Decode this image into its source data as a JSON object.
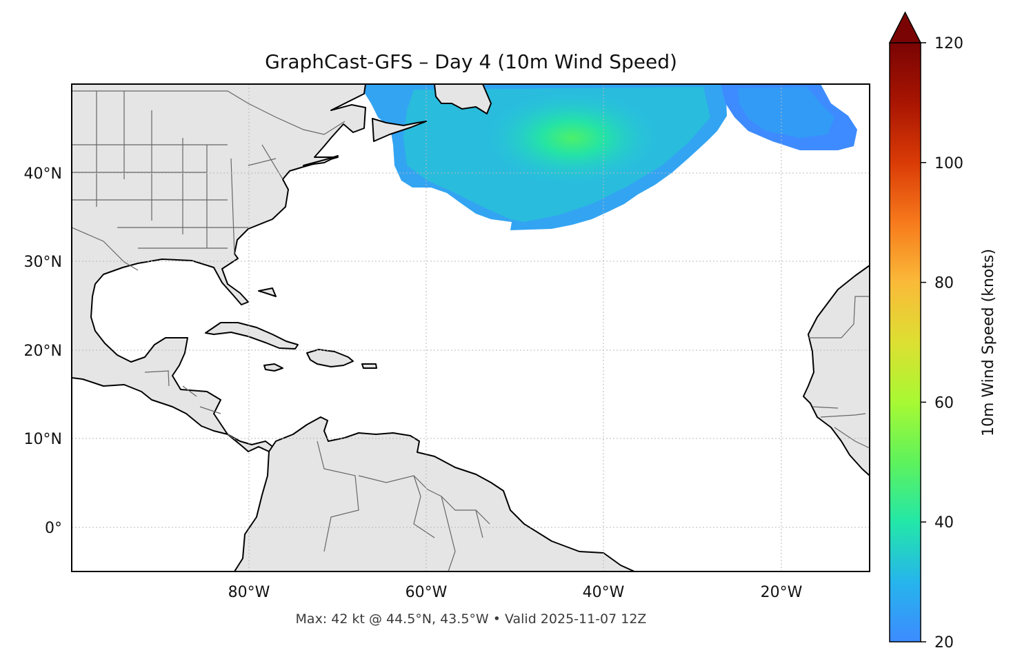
{
  "title": "GraphCast-GFS – Day 4 (10m Wind Speed)",
  "footer": "Max: 42 kt @ 44.5°N, 43.5°W • Valid 2025-11-07 12Z",
  "map": {
    "projection": "PlateCarree",
    "lon_range": [
      -100,
      -10
    ],
    "lat_range": [
      -5,
      50
    ],
    "lon_ticks": [
      {
        "lon": -80,
        "label": "80°W"
      },
      {
        "lon": -60,
        "label": "60°W"
      },
      {
        "lon": -40,
        "label": "40°W"
      },
      {
        "lon": -20,
        "label": "20°W"
      }
    ],
    "lat_ticks": [
      {
        "lat": 40,
        "label": "40°N"
      },
      {
        "lat": 30,
        "label": "30°N"
      },
      {
        "lat": 20,
        "label": "20°N"
      },
      {
        "lat": 10,
        "label": "10°N"
      },
      {
        "lat": 0,
        "label": "0°"
      }
    ],
    "gridlines": true,
    "land_color": "#e5e5e5",
    "coastline_color": "#000000",
    "border_color": "#666666",
    "max_marker": {
      "lat": 44.5,
      "lon": -43.5,
      "value": 42
    }
  },
  "colorbar": {
    "label": "10m Wind Speed (knots)",
    "min": 20,
    "max": 120,
    "extend": "max",
    "ticks": [
      {
        "value": 20,
        "label": "20"
      },
      {
        "value": 40,
        "label": "40"
      },
      {
        "value": 60,
        "label": "60"
      },
      {
        "value": 80,
        "label": "80"
      },
      {
        "value": 100,
        "label": "100"
      },
      {
        "value": 120,
        "label": "120"
      }
    ],
    "colormap": "turbo",
    "extend_color": "#7a0403"
  }
}
